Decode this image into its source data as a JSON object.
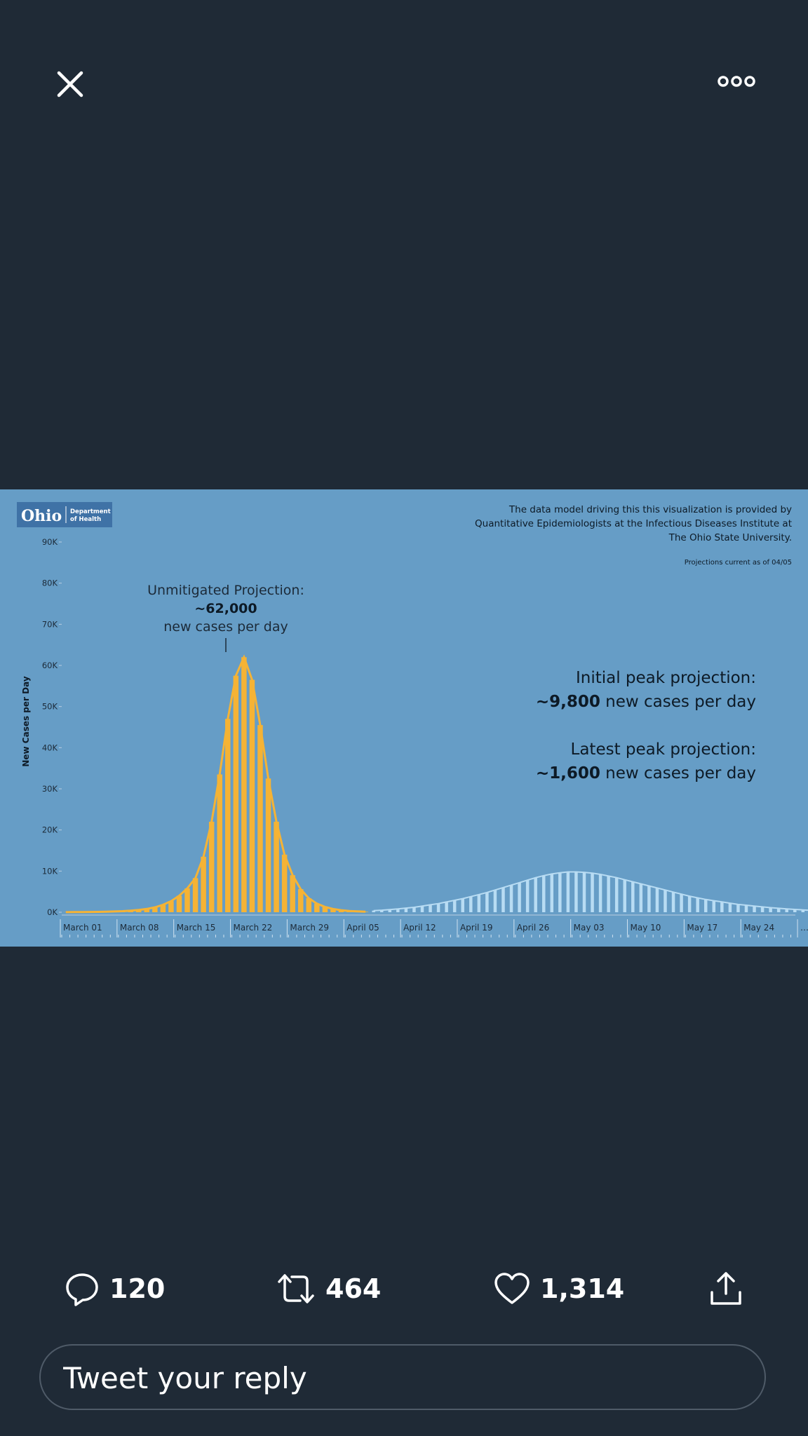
{
  "header": {
    "close_icon": "close-icon",
    "more_icon": "more-options-icon"
  },
  "logo": {
    "text_main": "Ohio",
    "text_line1": "Department",
    "text_line2": "of Health"
  },
  "chart_data": {
    "type": "bar",
    "ylabel": "New Cases per Day",
    "xlabel": "",
    "ylim": [
      0,
      90000
    ],
    "y_ticks": [
      0,
      10000,
      20000,
      30000,
      40000,
      50000,
      60000,
      70000,
      80000,
      90000
    ],
    "y_tick_labels": [
      "0K",
      "10K",
      "20K",
      "30K",
      "40K",
      "50K",
      "60K",
      "70K",
      "80K",
      "90K"
    ],
    "x_tick_labels": [
      "March 01",
      "March 08",
      "March 15",
      "March 22",
      "March 29",
      "April 05",
      "April 12",
      "April 19",
      "April 26",
      "May 03",
      "May 10",
      "May 17",
      "May 24",
      "…"
    ],
    "source_note": [
      "The data model driving this this visualization is provided by",
      "Quantitative Epidemiologists at the Infectious Diseases Institute at",
      "The Ohio State University."
    ],
    "projection_note": "Projections current as of 04/05",
    "annotations": {
      "unmitigated_title": "Unmitigated Projection:",
      "unmitigated_value": "~62,000",
      "unmitigated_suffix": "new cases per day",
      "initial_title": "Initial peak projection:",
      "initial_value": "~9,800",
      "initial_suffix": "new cases per day",
      "latest_title": "Latest peak projection:",
      "latest_value": "~1,600",
      "latest_suffix": "new cases per day"
    },
    "series": [
      {
        "name": "Unmitigated Projection",
        "color": "#f5b335",
        "start_day": 0,
        "values": [
          20,
          30,
          40,
          60,
          90,
          120,
          180,
          250,
          370,
          550,
          800,
          1200,
          1800,
          2700,
          4000,
          5800,
          8300,
          13500,
          22000,
          33500,
          47000,
          57500,
          62000,
          56500,
          45500,
          32500,
          22000,
          14000,
          9000,
          5600,
          3400,
          2100,
          1300,
          800,
          500,
          300,
          200,
          120
        ]
      },
      {
        "name": "Initial peak projection",
        "color": "#b8dcf3",
        "start_day": 38,
        "values": [
          400,
          500,
          650,
          800,
          1000,
          1200,
          1500,
          1800,
          2100,
          2500,
          2900,
          3300,
          3800,
          4300,
          4800,
          5400,
          6000,
          6600,
          7200,
          7800,
          8400,
          8900,
          9300,
          9600,
          9800,
          9800,
          9700,
          9500,
          9200,
          8800,
          8400,
          7900,
          7400,
          6900,
          6400,
          5900,
          5400,
          4900,
          4400,
          3900,
          3500,
          3100,
          2800,
          2500,
          2200,
          1900,
          1700,
          1500,
          1300,
          1100,
          950,
          800,
          680,
          560,
          460,
          380,
          310,
          250,
          200,
          160,
          130,
          110,
          90,
          75,
          60,
          50,
          40,
          30,
          25,
          20,
          15,
          12,
          10,
          8,
          6,
          5,
          4,
          3,
          2,
          1
        ]
      }
    ]
  },
  "actions": {
    "reply_count": "120",
    "retweet_count": "464",
    "like_count": "1,314"
  },
  "reply": {
    "placeholder": "Tweet your reply"
  }
}
